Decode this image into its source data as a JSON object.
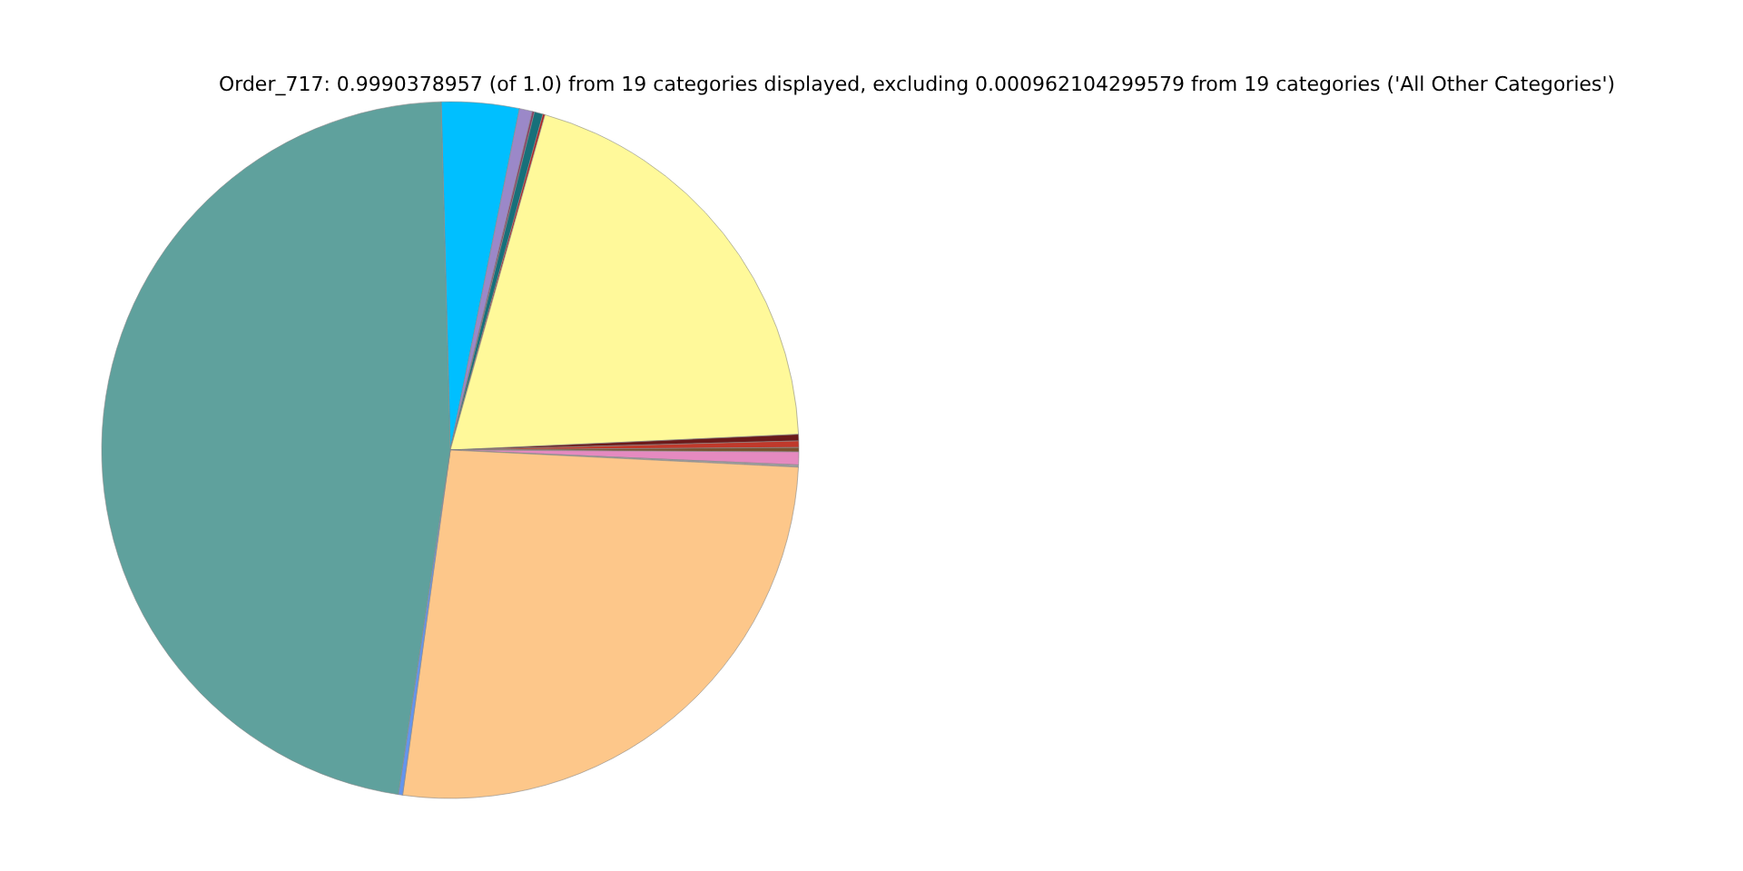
{
  "chart_data": {
    "type": "pie",
    "title": "Order_717: 0.9990378957 (of 1.0) from 19 categories displayed, excluding 0.000962104299579 from 19 categories ('All Other Categories')",
    "categories": [
      null,
      null,
      null,
      null,
      null,
      null,
      null,
      null,
      null,
      null,
      null,
      null,
      null,
      null
    ],
    "values": [
      3.6,
      0.6,
      0.1,
      0.4,
      0.1,
      19.9,
      0.3,
      0.3,
      0.2,
      0.6,
      0.1,
      26.4,
      0.2,
      47.2
    ],
    "colors": [
      "#00bfff",
      "#9b88c8",
      "#8b3a62",
      "#17707a",
      "#b22222",
      "#fff99a",
      "#6b1a1a",
      "#c0392b",
      "#7a5230",
      "#e58ac0",
      "#a0a0a0",
      "#fdc78a",
      "#6495ed",
      "#5fa19d"
    ]
  }
}
